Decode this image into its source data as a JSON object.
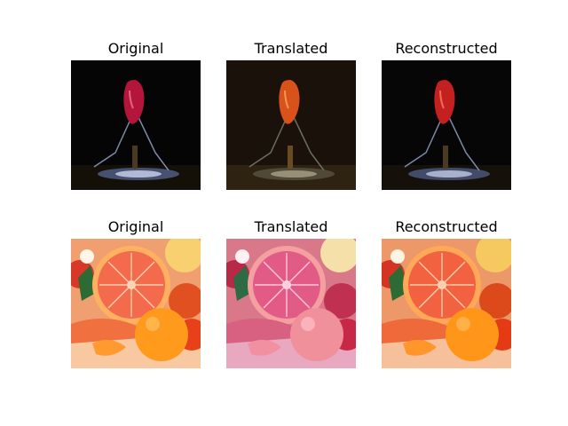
{
  "figure": {
    "rows": [
      {
        "subject": "red pepper on a wire stand, dark background",
        "panels": [
          {
            "title": "Original",
            "tint": "#b3163a"
          },
          {
            "title": "Translated",
            "tint": "#d8521a"
          },
          {
            "title": "Reconstructed",
            "tint": "#c42020"
          }
        ]
      },
      {
        "subject": "grapefruit and tangerine fruit arrangement",
        "panels": [
          {
            "title": "Original",
            "tint": "#f46a4c"
          },
          {
            "title": "Translated",
            "tint": "#e25a86"
          },
          {
            "title": "Reconstructed",
            "tint": "#f26240"
          }
        ]
      }
    ]
  }
}
